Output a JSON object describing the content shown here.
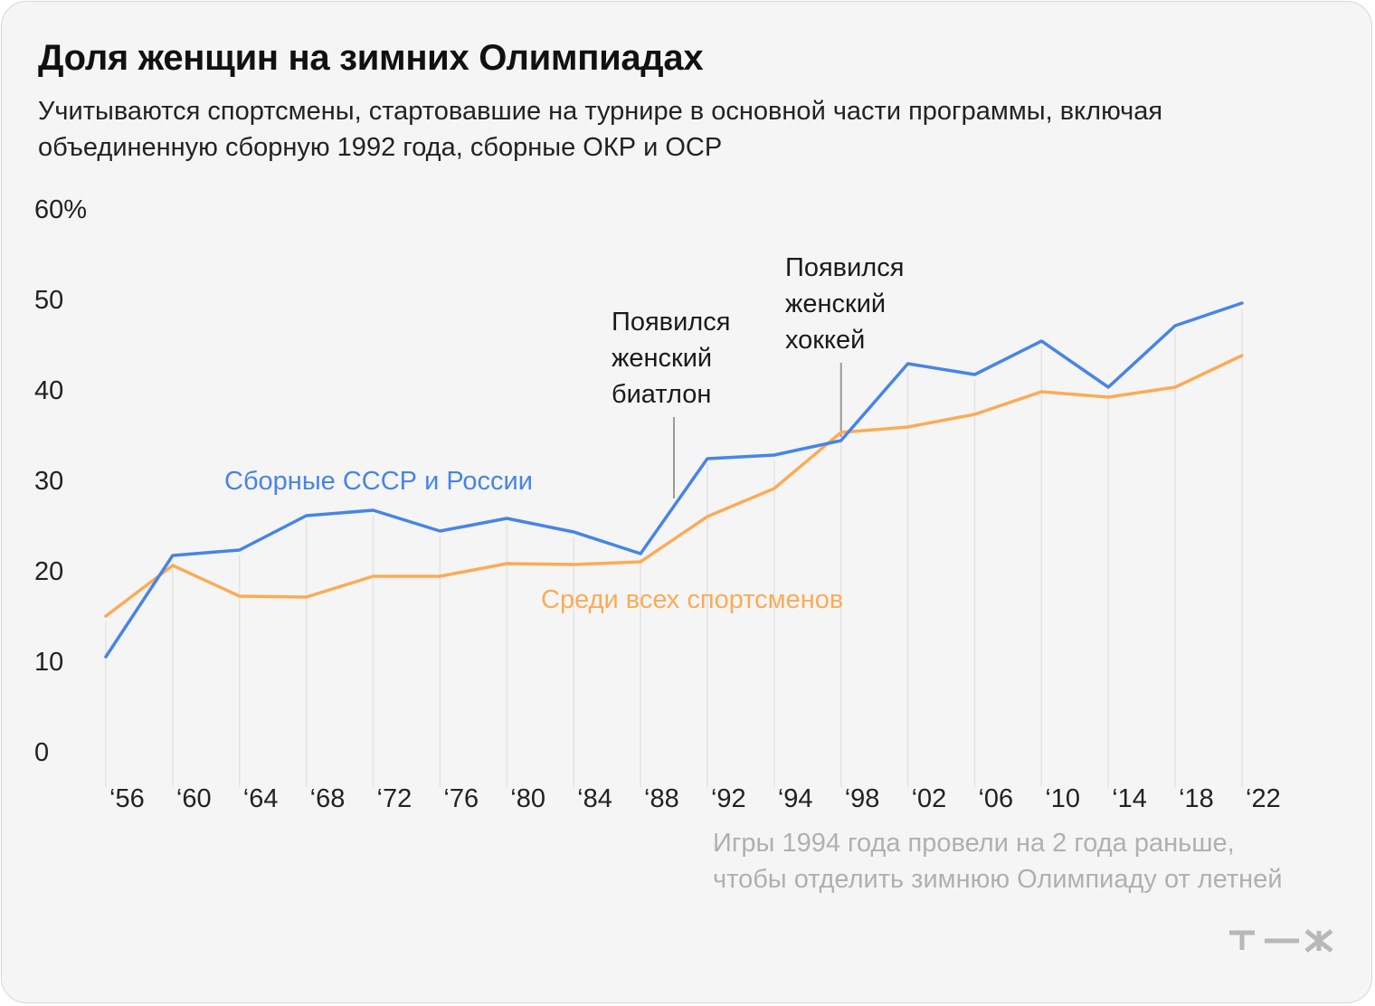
{
  "header": {
    "title": "Доля женщин на зимних Олимпиадах",
    "subtitle": "Учитываются спортсмены, стартовавшие на турнире в основной части программы, включая объединенную сборную 1992 года, сборные ОКР и ОСР"
  },
  "footnote": {
    "line1": "Игры 1994 года провели на 2 года раньше,",
    "line2": "чтобы отделить зимнюю Олимпиаду от летней"
  },
  "logo": {
    "name": "т—ж"
  },
  "colors": {
    "russia": "#4784e8",
    "all": "#fbab57",
    "grid": "#e3e3e3",
    "annotation": "#9a9a9a"
  },
  "chart_data": {
    "type": "line",
    "title": "Доля женщин на зимних Олимпиадах",
    "xlabel": "",
    "ylabel": "",
    "ylim": [
      0,
      60
    ],
    "y_ticks": [
      "0",
      "10",
      "20",
      "30",
      "40",
      "50",
      "60%"
    ],
    "categories": [
      "‘56",
      "‘60",
      "‘64",
      "‘68",
      "‘72",
      "‘76",
      "‘80",
      "‘84",
      "‘88",
      "‘92",
      "‘94",
      "‘98",
      "‘02",
      "‘06",
      "‘10",
      "‘14",
      "‘18",
      "‘22"
    ],
    "series": [
      {
        "name": "Сборные СССР и России",
        "color": "#4784e8",
        "values": [
          10.5,
          21.7,
          22.3,
          26.1,
          26.7,
          24.4,
          25.8,
          24.3,
          21.9,
          32.4,
          32.8,
          34.4,
          42.9,
          41.7,
          45.4,
          40.3,
          47.1,
          49.6
        ]
      },
      {
        "name": "Среди всех спортсменов",
        "color": "#fbab57",
        "values": [
          15.0,
          20.6,
          17.2,
          17.1,
          19.4,
          19.4,
          20.8,
          20.7,
          21.0,
          26.0,
          29.1,
          35.3,
          35.9,
          37.3,
          39.8,
          39.2,
          40.3,
          43.8
        ]
      }
    ],
    "annotations": [
      {
        "lines": [
          "Появился",
          "женский",
          "биатлон"
        ],
        "x_between": [
          "‘88",
          "‘92"
        ],
        "y_value": 29.2
      },
      {
        "lines": [
          "Появился",
          "женский",
          "хоккей"
        ],
        "x_at": "‘98",
        "y_value": 36.0
      }
    ]
  }
}
